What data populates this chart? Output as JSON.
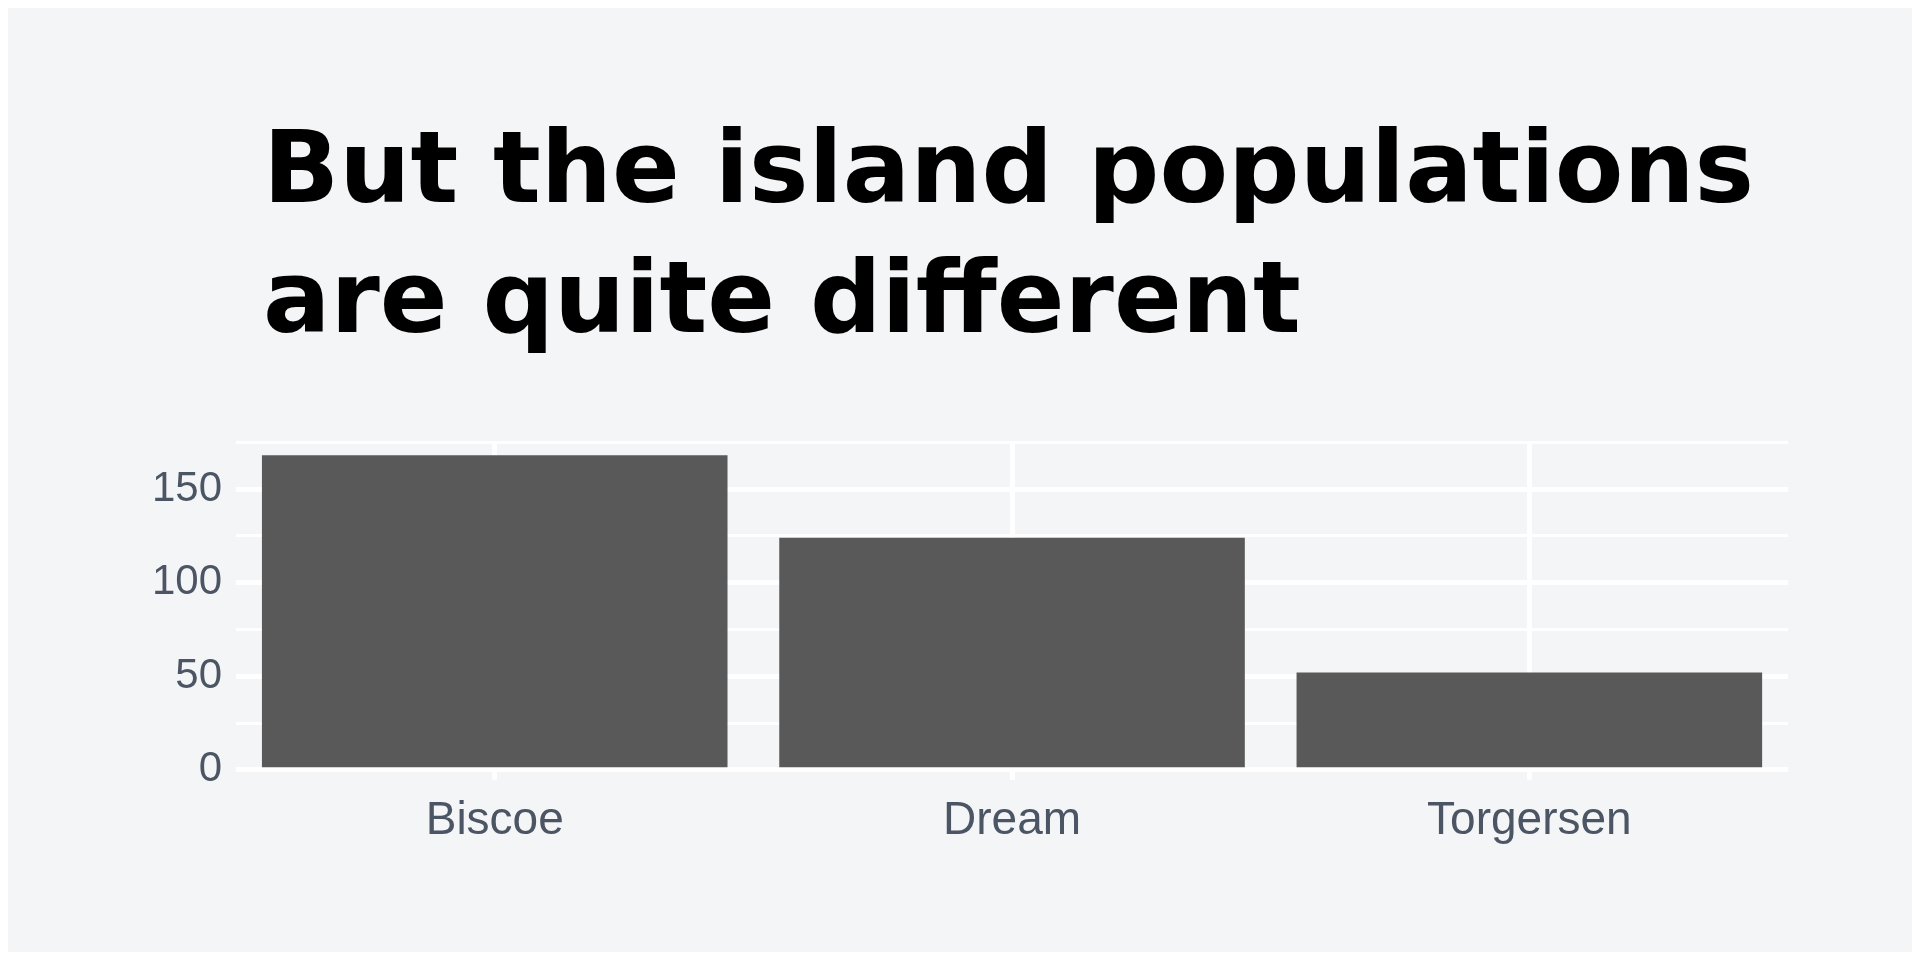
{
  "chart_data": {
    "type": "bar",
    "title": "But the island populations are quite different",
    "categories": [
      "Biscoe",
      "Dream",
      "Torgersen"
    ],
    "values": [
      168,
      124,
      52
    ],
    "color": "#595959",
    "ylim": [
      0,
      175
    ],
    "yticks": [
      0,
      {
        "value": 25,
        "label": null
      },
      50,
      {
        "value": 75,
        "label": null
      },
      100,
      {
        "value": 125,
        "label": null
      },
      150,
      {
        "value": 175,
        "label": null
      }
    ],
    "grid": true
  }
}
